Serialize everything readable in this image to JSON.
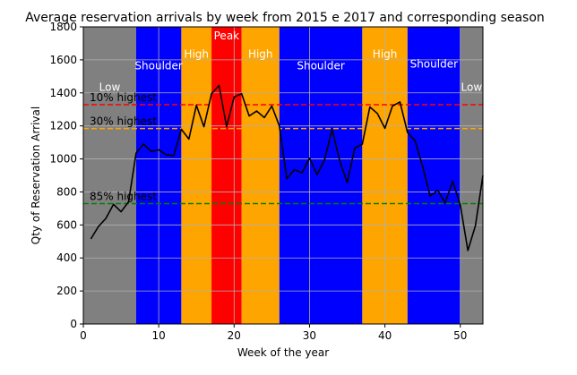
{
  "chart_data": {
    "type": "line",
    "title": "Average reservation arrivals by week from 2015 e 2017 and corresponding season",
    "xlabel": "Week of the year",
    "ylabel": "Qty of Reservation Arrival",
    "xlim": [
      0,
      53
    ],
    "ylim": [
      0,
      1800
    ],
    "xticks": [
      0,
      10,
      20,
      30,
      40,
      50
    ],
    "yticks": [
      0,
      200,
      400,
      600,
      800,
      1000,
      1200,
      1400,
      1600,
      1800
    ],
    "grid": true,
    "line_color": "#000000",
    "series": [
      {
        "x": [
          1,
          2,
          3,
          4,
          5,
          6,
          7,
          8,
          9,
          10,
          11,
          12,
          13,
          14,
          15,
          16,
          17,
          18,
          19,
          20,
          21,
          22,
          23,
          24,
          25,
          26,
          27,
          28,
          29,
          30,
          31,
          32,
          33,
          34,
          35,
          36,
          37,
          38,
          39,
          40,
          41,
          42,
          43,
          44,
          45,
          46,
          47,
          48,
          49,
          50,
          51,
          52,
          53
        ],
        "values": [
          515,
          590,
          640,
          725,
          680,
          740,
          1035,
          1090,
          1045,
          1055,
          1025,
          1020,
          1180,
          1120,
          1325,
          1195,
          1395,
          1445,
          1195,
          1375,
          1395,
          1260,
          1290,
          1250,
          1320,
          1200,
          880,
          935,
          915,
          1005,
          905,
          995,
          1180,
          990,
          855,
          1065,
          1090,
          1315,
          1275,
          1185,
          1320,
          1345,
          1160,
          1110,
          955,
          775,
          810,
          735,
          865,
          720,
          445,
          595,
          900
        ]
      }
    ],
    "seasons": [
      {
        "label": "Low",
        "start": 0,
        "end": 7,
        "color": "#808080"
      },
      {
        "label": "Shoulder",
        "start": 7,
        "end": 13,
        "color": "#0000ff"
      },
      {
        "label": "High",
        "start": 13,
        "end": 17,
        "color": "#ffa500"
      },
      {
        "label": "Peak",
        "start": 17,
        "end": 21,
        "color": "#ff0000"
      },
      {
        "label": "High",
        "start": 21,
        "end": 26,
        "color": "#ffa500"
      },
      {
        "label": "Shoulder",
        "start": 26,
        "end": 37,
        "color": "#0000ff"
      },
      {
        "label": "High",
        "start": 37,
        "end": 43,
        "color": "#ffa500"
      },
      {
        "label": "Shoulder",
        "start": 43,
        "end": 50,
        "color": "#0000ff"
      },
      {
        "label": "Low",
        "start": 50,
        "end": 53,
        "color": "#808080"
      }
    ],
    "reference_lines": [
      {
        "label": "10% highest",
        "y": 1328,
        "color": "#ff0000"
      },
      {
        "label": "30% highest",
        "y": 1184,
        "color": "#ffa500"
      },
      {
        "label": "85% highest",
        "y": 729,
        "color": "#008000"
      }
    ]
  }
}
